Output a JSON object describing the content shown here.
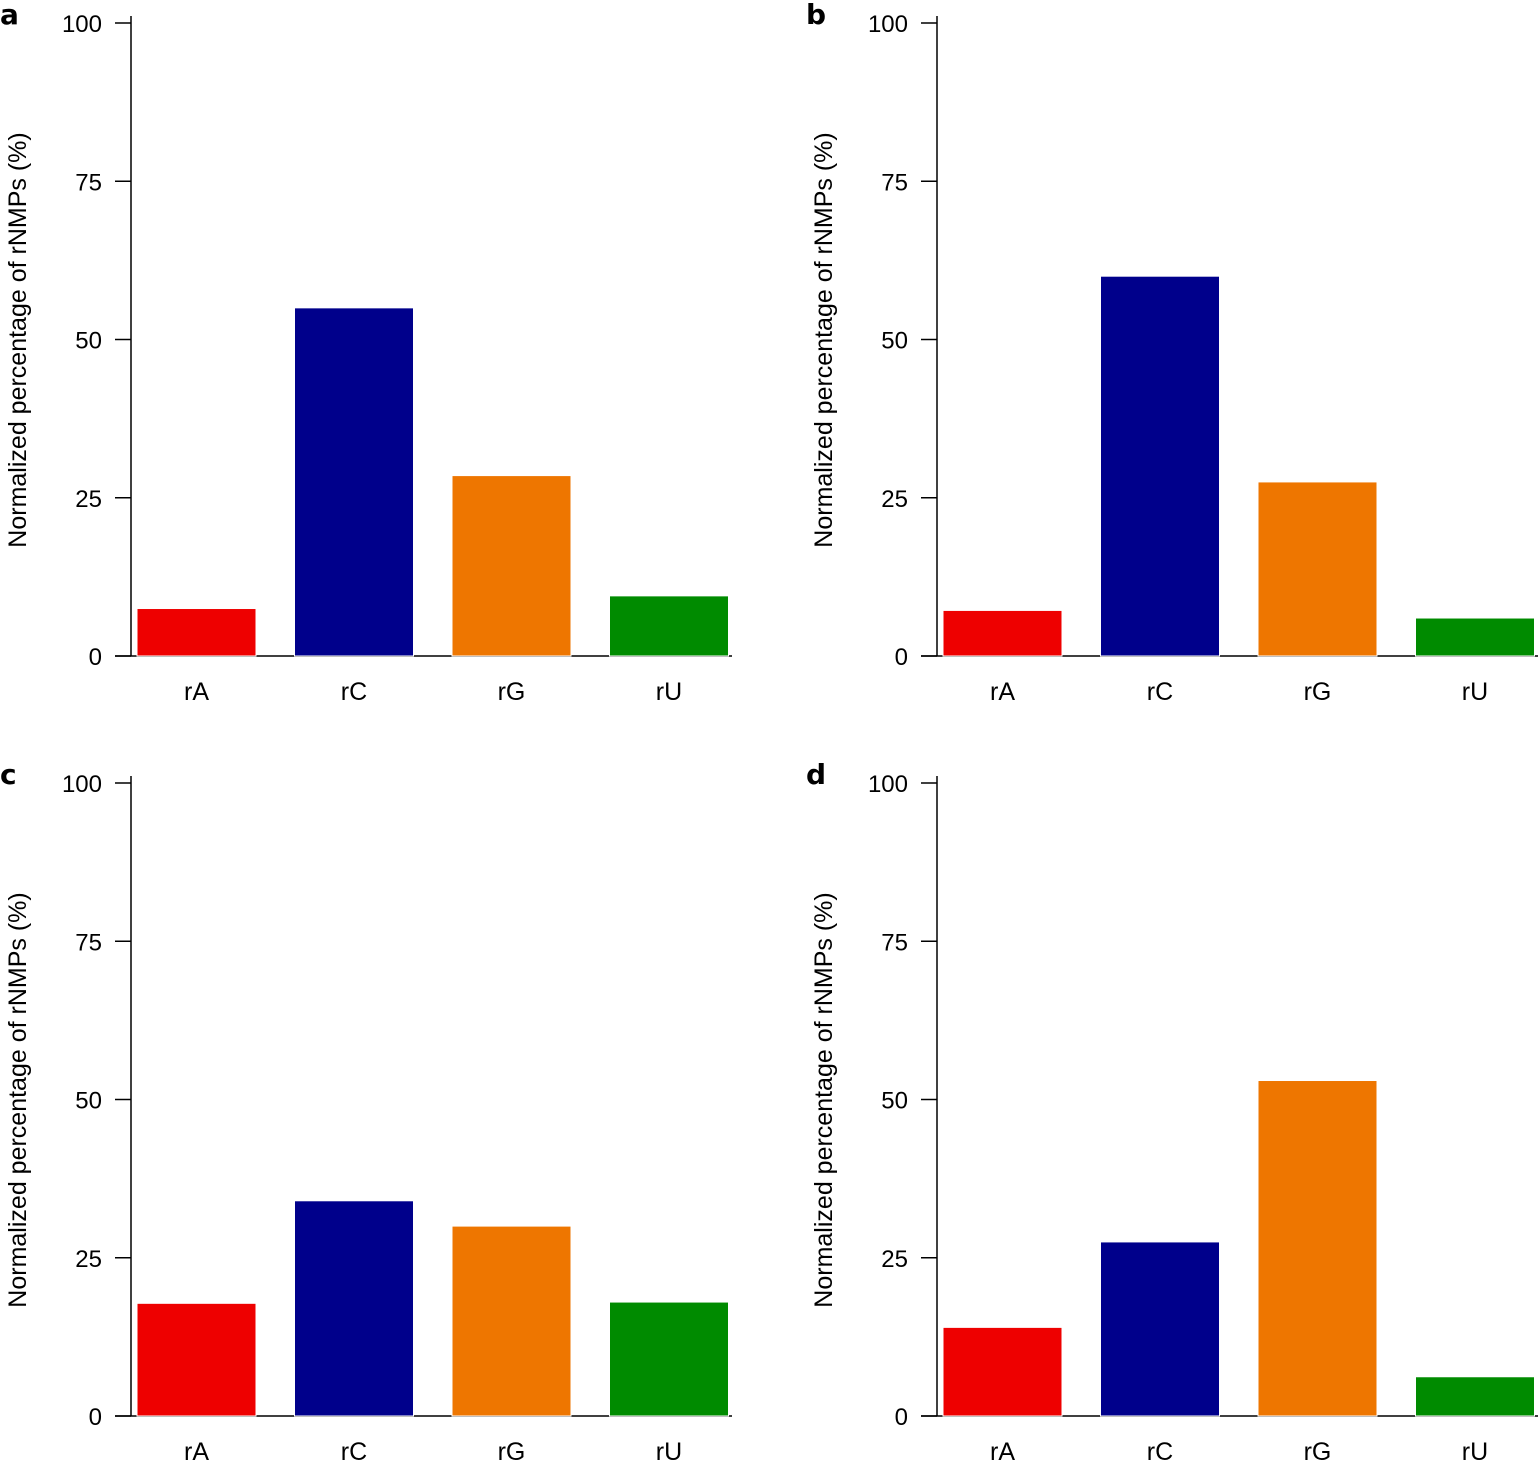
{
  "chart_data": [
    {
      "panel": "a",
      "type": "bar",
      "categories": [
        "rA",
        "rC",
        "rG",
        "rU"
      ],
      "values": [
        7.5,
        55,
        28.5,
        9.5
      ],
      "colors": [
        "#ee0000",
        "#00008b",
        "#ee7600",
        "#008b00"
      ],
      "ylabel": "Normalized percentage of rNMPs (%)",
      "xlabel": "",
      "ylim": [
        0,
        100
      ],
      "yticks": [
        "0",
        "25",
        "50",
        "75",
        "100"
      ]
    },
    {
      "panel": "b",
      "type": "bar",
      "categories": [
        "rA",
        "rC",
        "rG",
        "rU"
      ],
      "values": [
        7.2,
        60,
        27.5,
        6
      ],
      "colors": [
        "#ee0000",
        "#00008b",
        "#ee7600",
        "#008b00"
      ],
      "ylabel": "Normalized percentage of rNMPs (%)",
      "xlabel": "",
      "ylim": [
        0,
        100
      ],
      "yticks": [
        "0",
        "25",
        "50",
        "75",
        "100"
      ]
    },
    {
      "panel": "c",
      "type": "bar",
      "categories": [
        "rA",
        "rC",
        "rG",
        "rU"
      ],
      "values": [
        17.8,
        34,
        30,
        18
      ],
      "colors": [
        "#ee0000",
        "#00008b",
        "#ee7600",
        "#008b00"
      ],
      "ylabel": "Normalized percentage of rNMPs (%)",
      "xlabel": "",
      "ylim": [
        0,
        100
      ],
      "yticks": [
        "0",
        "25",
        "50",
        "75",
        "100"
      ]
    },
    {
      "panel": "d",
      "type": "bar",
      "categories": [
        "rA",
        "rC",
        "rG",
        "rU"
      ],
      "values": [
        14,
        27.5,
        53,
        6.2
      ],
      "colors": [
        "#ee0000",
        "#00008b",
        "#ee7600",
        "#008b00"
      ],
      "ylabel": "Normalized percentage of rNMPs (%)",
      "xlabel": "",
      "ylim": [
        0,
        100
      ],
      "yticks": [
        "0",
        "25",
        "50",
        "75",
        "100"
      ]
    }
  ]
}
